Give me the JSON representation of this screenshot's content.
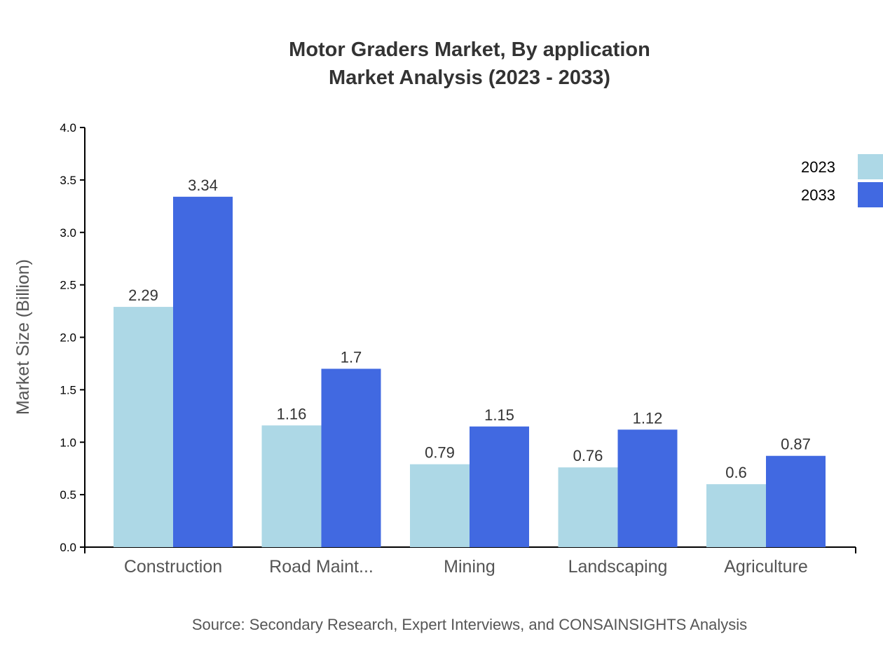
{
  "chart_data": {
    "type": "bar",
    "title": "Motor Graders Market, By application",
    "subtitle": "Market Analysis (2023 - 2033)",
    "xlabel": "",
    "ylabel": "Market Size (Billion)",
    "ylim": [
      0,
      4.0
    ],
    "yticks": [
      "0.0",
      "0.5",
      "1.0",
      "1.5",
      "2.0",
      "2.5",
      "3.0",
      "3.5",
      "4.0"
    ],
    "categories": [
      "Construction",
      "Road Maint...",
      "Mining",
      "Landscaping",
      "Agriculture"
    ],
    "series": [
      {
        "name": "2023",
        "color": "#add8e6",
        "values": [
          2.29,
          1.16,
          0.79,
          0.76,
          0.6
        ],
        "labels": [
          "2.29",
          "1.16",
          "0.79",
          "0.76",
          "0.6"
        ]
      },
      {
        "name": "2033",
        "color": "#4169e1",
        "values": [
          3.34,
          1.7,
          1.15,
          1.12,
          0.87
        ],
        "labels": [
          "3.34",
          "1.7",
          "1.15",
          "1.12",
          "0.87"
        ]
      }
    ],
    "legend": "top-right",
    "grid": false,
    "source": "Source: Secondary Research, Expert Interviews, and CONSAINSIGHTS Analysis"
  }
}
